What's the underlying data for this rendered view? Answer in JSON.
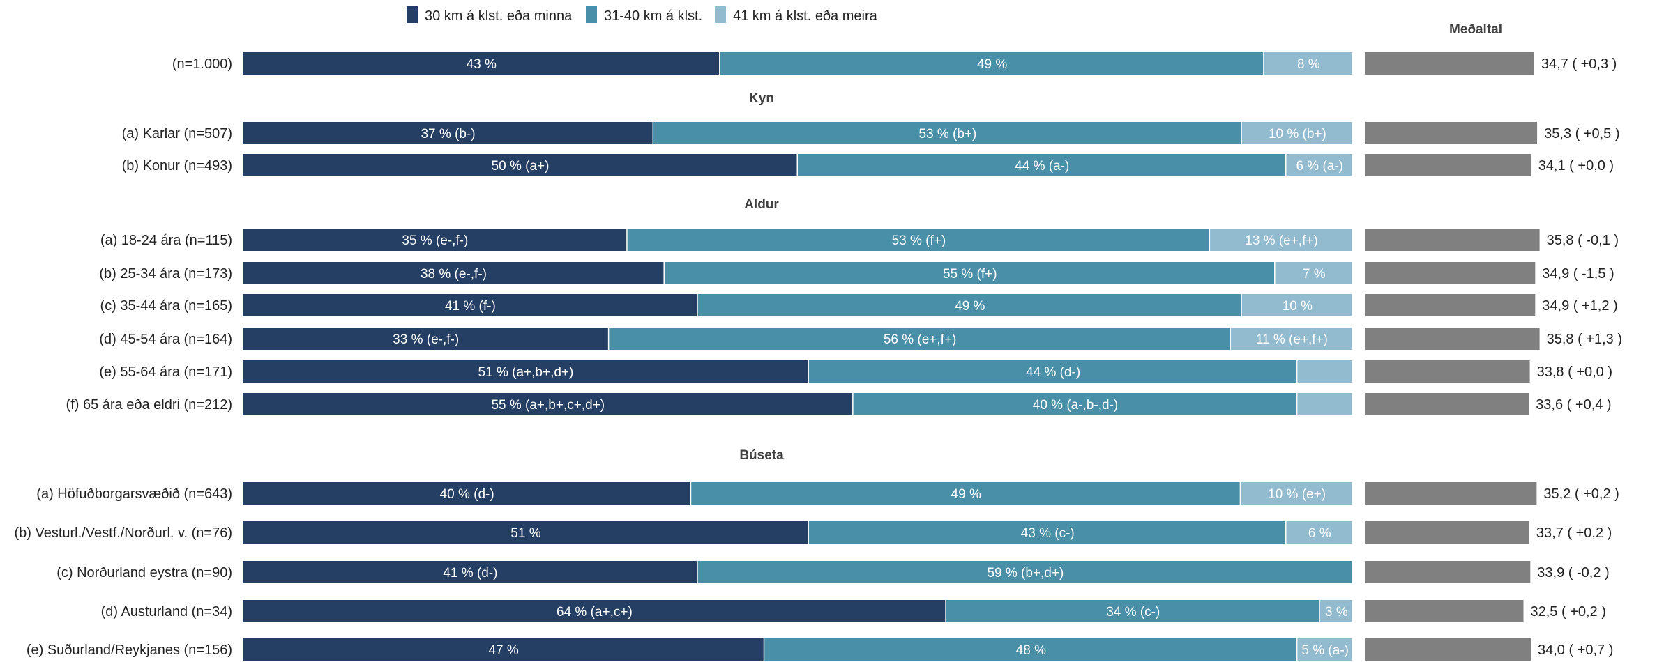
{
  "chart_data": {
    "type": "bar",
    "orientation": "horizontal",
    "stacked": true,
    "legend": {
      "position": "top",
      "entries": [
        {
          "label": "30 km á klst. eða minna",
          "color": "#243f63"
        },
        {
          "label": "31-40 km á klst.",
          "color": "#4a8fa8"
        },
        {
          "label": "41 km á klst. eða meira",
          "color": "#92bbd0"
        }
      ]
    },
    "mean_header": "Meðaltal",
    "mean_color": "#808080",
    "mean_range": [
      0,
      40
    ],
    "groups": [
      {
        "title": "",
        "rows": [
          {
            "label": "(n=1.000)",
            "values": [
              43,
              49,
              8
            ],
            "labels": [
              "43 %",
              "49 %",
              "8 %"
            ],
            "mean": 34.7,
            "mean_label": "34,7 ( +0,3 )"
          }
        ]
      },
      {
        "title": "Kyn",
        "rows": [
          {
            "label": "(a) Karlar (n=507)",
            "values": [
              37,
              53,
              10
            ],
            "labels": [
              "37 % (b-)",
              "53 % (b+)",
              "10 % (b+)"
            ],
            "mean": 35.3,
            "mean_label": "35,3 ( +0,5 )"
          },
          {
            "label": "(b) Konur (n=493)",
            "values": [
              50,
              44,
              6
            ],
            "labels": [
              "50 % (a+)",
              "44 % (a-)",
              "6 % (a-)"
            ],
            "mean": 34.1,
            "mean_label": "34,1 ( +0,0 )"
          }
        ]
      },
      {
        "title": "Aldur",
        "rows": [
          {
            "label": "(a) 18-24 ára (n=115)",
            "values": [
              35,
              53,
              13
            ],
            "labels": [
              "35 % (e-,f-)",
              "53 % (f+)",
              "13 % (e+,f+)"
            ],
            "mean": 35.8,
            "mean_label": "35,8 ( -0,1 )"
          },
          {
            "label": "(b) 25-34 ára (n=173)",
            "values": [
              38,
              55,
              7
            ],
            "labels": [
              "38 % (e-,f-)",
              "55 % (f+)",
              "7 %"
            ],
            "mean": 34.9,
            "mean_label": "34,9 ( -1,5 )"
          },
          {
            "label": "(c) 35-44 ára (n=165)",
            "values": [
              41,
              49,
              10
            ],
            "labels": [
              "41 % (f-)",
              "49 %",
              "10 %"
            ],
            "mean": 34.9,
            "mean_label": "34,9 ( +1,2 )"
          },
          {
            "label": "(d) 45-54 ára (n=164)",
            "values": [
              33,
              56,
              11
            ],
            "labels": [
              "33 % (e-,f-)",
              "56 % (e+,f+)",
              "11 % (e+,f+)"
            ],
            "mean": 35.8,
            "mean_label": "35,8 ( +1,3 )"
          },
          {
            "label": "(e) 55-64 ára (n=171)",
            "values": [
              51,
              44,
              5
            ],
            "labels": [
              "51 % (a+,b+,d+)",
              "44 % (d-)",
              ""
            ],
            "mean": 33.8,
            "mean_label": "33,8 ( +0,0 )"
          },
          {
            "label": "(f) 65 ára eða eldri (n=212)",
            "values": [
              55,
              40,
              5
            ],
            "labels": [
              "55 % (a+,b+,c+,d+)",
              "40 % (a-,b-,d-)",
              ""
            ],
            "mean": 33.6,
            "mean_label": "33,6 ( +0,4 )"
          }
        ]
      },
      {
        "title": "Búseta",
        "rows": [
          {
            "label": "(a) Höfuðborgarsvæðið (n=643)",
            "values": [
              40,
              49,
              10
            ],
            "labels": [
              "40 % (d-)",
              "49 %",
              "10 % (e+)"
            ],
            "mean": 35.2,
            "mean_label": "35,2 ( +0,2 )"
          },
          {
            "label": "(b) Vesturl./Vestf./Norðurl. v. (n=76)",
            "values": [
              51,
              43,
              6
            ],
            "labels": [
              "51 %",
              "43 % (c-)",
              "6 %"
            ],
            "mean": 33.7,
            "mean_label": "33,7 ( +0,2 )"
          },
          {
            "label": "(c) Norðurland eystra (n=90)",
            "values": [
              41,
              59,
              0
            ],
            "labels": [
              "41 % (d-)",
              "59 % (b+,d+)",
              ""
            ],
            "mean": 33.9,
            "mean_label": "33,9 ( -0,2 )"
          },
          {
            "label": "(d) Austurland (n=34)",
            "values": [
              64,
              34,
              3
            ],
            "labels": [
              "64 % (a+,c+)",
              "34 % (c-)",
              "3 %"
            ],
            "mean": 32.5,
            "mean_label": "32,5 ( +0,2 )"
          },
          {
            "label": "(e) Suðurland/Reykjanes (n=156)",
            "values": [
              47,
              48,
              5
            ],
            "labels": [
              "47 %",
              "48 %",
              "5 % (a-)"
            ],
            "mean": 34.0,
            "mean_label": "34,0 ( +0,7 )"
          }
        ]
      }
    ]
  }
}
